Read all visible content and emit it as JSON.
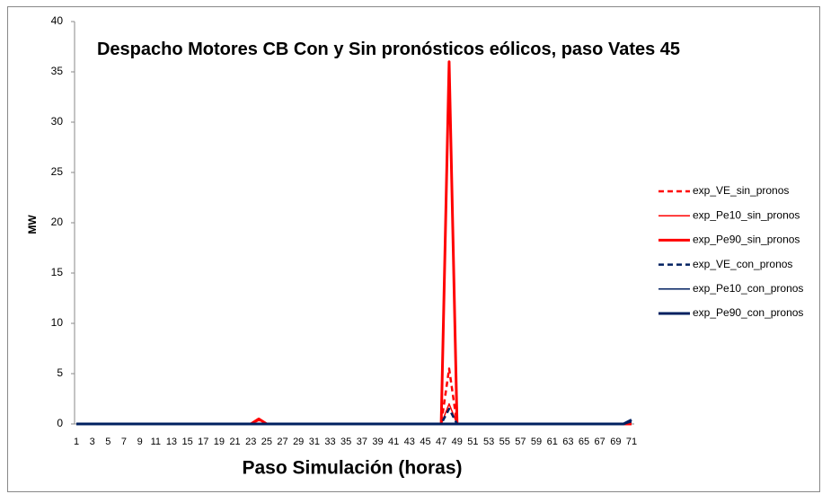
{
  "chart_data": {
    "type": "line",
    "title": "Despacho Motores CB Con y Sin pronósticos eólicos, paso Vates 45",
    "x_label": "Paso Simulación (horas)",
    "y_label": "MW",
    "categories": [
      "1",
      null,
      "3",
      null,
      "5",
      null,
      "7",
      null,
      "9",
      null,
      "11",
      null,
      "13",
      null,
      "15",
      null,
      "17",
      null,
      "19",
      null,
      "21",
      null,
      "23",
      null,
      "25",
      null,
      "27",
      null,
      "29",
      null,
      "31",
      null,
      "33",
      null,
      "35",
      null,
      "37",
      null,
      "39",
      null,
      "41",
      null,
      "43",
      null,
      "45",
      null,
      "47",
      null,
      "49",
      null,
      "51",
      null,
      "53",
      null,
      "55",
      null,
      "57",
      null,
      "59",
      null,
      "61",
      null,
      "63",
      null,
      "65",
      null,
      "67",
      null,
      "69",
      null,
      "71"
    ],
    "ylim": [
      0,
      40
    ],
    "yticks": [
      0,
      5,
      10,
      15,
      20,
      25,
      30,
      35,
      40
    ],
    "grid": false,
    "legend": "right",
    "series": [
      {
        "name": "exp_VE_sin_pronos",
        "color": "#ff0000",
        "style": "dashed",
        "values": [
          0,
          0,
          0,
          0,
          0,
          0,
          0,
          0,
          0,
          0,
          0,
          0,
          0,
          0,
          0,
          0,
          0,
          0,
          0,
          0,
          0,
          0,
          0,
          0.4,
          0,
          0,
          0,
          0,
          0,
          0,
          0,
          0,
          0,
          0,
          0,
          0,
          0,
          0,
          0,
          0,
          0,
          0,
          0,
          0,
          0,
          0,
          0,
          5.5,
          0,
          0,
          0,
          0,
          0,
          0,
          0,
          0,
          0,
          0,
          0,
          0,
          0,
          0,
          0,
          0,
          0,
          0,
          0,
          0,
          0,
          0,
          0
        ]
      },
      {
        "name": "exp_Pe10_sin_pronos",
        "color": "#ff0000",
        "style": "thin",
        "values": [
          0,
          0,
          0,
          0,
          0,
          0,
          0,
          0,
          0,
          0,
          0,
          0,
          0,
          0,
          0,
          0,
          0,
          0,
          0,
          0,
          0,
          0,
          0,
          0,
          0,
          0,
          0,
          0,
          0,
          0,
          0,
          0,
          0,
          0,
          0,
          0,
          0,
          0,
          0,
          0,
          0,
          0,
          0,
          0,
          0,
          0,
          0,
          2,
          0,
          0,
          0,
          0,
          0,
          0,
          0,
          0,
          0,
          0,
          0,
          0,
          0,
          0,
          0,
          0,
          0,
          0,
          0,
          0,
          0,
          0,
          0
        ]
      },
      {
        "name": "exp_Pe90_sin_pronos",
        "color": "#ff0000",
        "style": "thick",
        "values": [
          0,
          0,
          0,
          0,
          0,
          0,
          0,
          0,
          0,
          0,
          0,
          0,
          0,
          0,
          0,
          0,
          0,
          0,
          0,
          0,
          0,
          0,
          0,
          0.5,
          0,
          0,
          0,
          0,
          0,
          0,
          0,
          0,
          0,
          0,
          0,
          0,
          0,
          0,
          0,
          0,
          0,
          0,
          0,
          0,
          0,
          0,
          0,
          36,
          0,
          0,
          0,
          0,
          0,
          0,
          0,
          0,
          0,
          0,
          0,
          0,
          0,
          0,
          0,
          0,
          0,
          0,
          0,
          0,
          0,
          0,
          0
        ]
      },
      {
        "name": "exp_VE_con_pronos",
        "color": "#002060",
        "style": "dashed",
        "values": [
          0,
          0,
          0,
          0,
          0,
          0,
          0,
          0,
          0,
          0,
          0,
          0,
          0,
          0,
          0,
          0,
          0,
          0,
          0,
          0,
          0,
          0,
          0,
          0,
          0,
          0,
          0,
          0,
          0,
          0,
          0,
          0,
          0,
          0,
          0,
          0,
          0,
          0,
          0,
          0,
          0,
          0,
          0,
          0,
          0,
          0,
          0,
          1.5,
          0,
          0,
          0,
          0,
          0,
          0,
          0,
          0,
          0,
          0,
          0,
          0,
          0,
          0,
          0,
          0,
          0,
          0,
          0,
          0,
          0,
          0,
          0.3
        ]
      },
      {
        "name": "exp_Pe10_con_pronos",
        "color": "#002060",
        "style": "thin",
        "values": [
          0,
          0,
          0,
          0,
          0,
          0,
          0,
          0,
          0,
          0,
          0,
          0,
          0,
          0,
          0,
          0,
          0,
          0,
          0,
          0,
          0,
          0,
          0,
          0,
          0,
          0,
          0,
          0,
          0,
          0,
          0,
          0,
          0,
          0,
          0,
          0,
          0,
          0,
          0,
          0,
          0,
          0,
          0,
          0,
          0,
          0,
          0,
          0,
          0,
          0,
          0,
          0,
          0,
          0,
          0,
          0,
          0,
          0,
          0,
          0,
          0,
          0,
          0,
          0,
          0,
          0,
          0,
          0,
          0,
          0,
          0.2
        ]
      },
      {
        "name": "exp_Pe90_con_pronos",
        "color": "#002060",
        "style": "thick",
        "values": [
          0,
          0,
          0,
          0,
          0,
          0,
          0,
          0,
          0,
          0,
          0,
          0,
          0,
          0,
          0,
          0,
          0,
          0,
          0,
          0,
          0,
          0,
          0,
          0,
          0,
          0,
          0,
          0,
          0,
          0,
          0,
          0,
          0,
          0,
          0,
          0,
          0,
          0,
          0,
          0,
          0,
          0,
          0,
          0,
          0,
          0,
          0,
          0,
          0,
          0,
          0,
          0,
          0,
          0,
          0,
          0,
          0,
          0,
          0,
          0,
          0,
          0,
          0,
          0,
          0,
          0,
          0,
          0,
          0,
          0,
          0.4
        ]
      }
    ]
  }
}
